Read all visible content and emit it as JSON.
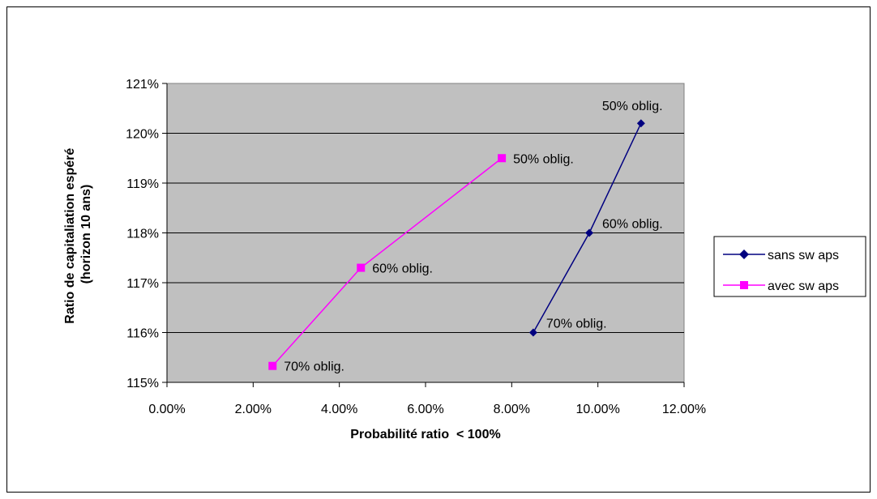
{
  "chart_data": {
    "type": "line",
    "title": "",
    "xlabel": "Probabilité ratio  < 100%",
    "ylabel_lines": [
      "Ratio de capitaliation espéré",
      "(horizon 10 ans)"
    ],
    "xlim": [
      0.0,
      0.12
    ],
    "ylim": [
      1.15,
      1.21
    ],
    "x_ticks": [
      {
        "value": 0.0,
        "label": "0.00%"
      },
      {
        "value": 0.02,
        "label": "2.00%"
      },
      {
        "value": 0.04,
        "label": "4.00%"
      },
      {
        "value": 0.06,
        "label": "6.00%"
      },
      {
        "value": 0.08,
        "label": "8.00%"
      },
      {
        "value": 0.1,
        "label": "10.00%"
      },
      {
        "value": 0.12,
        "label": "12.00%"
      }
    ],
    "y_ticks": [
      {
        "value": 1.15,
        "label": "115%"
      },
      {
        "value": 1.16,
        "label": "116%"
      },
      {
        "value": 1.17,
        "label": "117%"
      },
      {
        "value": 1.18,
        "label": "118%"
      },
      {
        "value": 1.19,
        "label": "119%"
      },
      {
        "value": 1.2,
        "label": "120%"
      },
      {
        "value": 1.21,
        "label": "121%"
      }
    ],
    "grid": "horizontal",
    "plot_background": "#c0c0c0",
    "legend_position": "right",
    "series": [
      {
        "name": "sans sw aps",
        "color": "#000080",
        "marker": "diamond",
        "points": [
          {
            "x": 0.085,
            "y": 1.16,
            "label": "70% oblig."
          },
          {
            "x": 0.098,
            "y": 1.18,
            "label": "60% oblig."
          },
          {
            "x": 0.11,
            "y": 1.202,
            "label": "50% oblig."
          }
        ]
      },
      {
        "name": "avec sw aps",
        "color": "#ff00ff",
        "marker": "square",
        "points": [
          {
            "x": 0.0245,
            "y": 1.1533,
            "label": "70% oblig."
          },
          {
            "x": 0.045,
            "y": 1.173,
            "label": "60% oblig."
          },
          {
            "x": 0.0777,
            "y": 1.195,
            "label": "50% oblig."
          }
        ]
      }
    ]
  }
}
